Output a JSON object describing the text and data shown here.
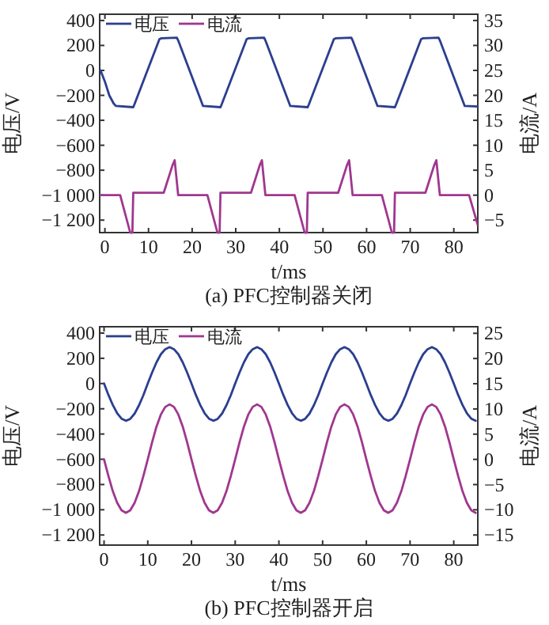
{
  "chart_data": [
    {
      "type": "line",
      "title": "(a) PFC控制器关闭",
      "xlabel": "t/ms",
      "ylabel": "电压/V",
      "y2label": "电流/A",
      "legend": "top left",
      "xlim": [
        -1.2,
        85.5
      ],
      "xticks": [
        0,
        10,
        20,
        30,
        40,
        50,
        60,
        70,
        80
      ],
      "ylim": [
        -1300,
        450
      ],
      "yticks": [
        400,
        200,
        0,
        {
          "value": -200,
          "label": "−200"
        },
        {
          "value": -400,
          "label": "−400"
        },
        {
          "value": -600,
          "label": "−600"
        },
        {
          "value": -800,
          "label": "−800"
        },
        {
          "value": -1000,
          "label": "−1 000"
        },
        {
          "value": -1200,
          "label": "−1 200"
        }
      ],
      "y2lim": [
        -7.5,
        36.25
      ],
      "y2ticks": [
        {
          "value": -5,
          "label": "−5"
        },
        0,
        5,
        10,
        15,
        20,
        25,
        30,
        35
      ],
      "series": [
        {
          "name": "电压",
          "color": "#2b3f8f",
          "x": [
            -1,
            0,
            1,
            2,
            2.5,
            6.5,
            6.8,
            12.5,
            13,
            16.5,
            16.8,
            22.5,
            26.5,
            26.8,
            32.5,
            33,
            36.5,
            36.8,
            42.5,
            46.5,
            46.8,
            52.5,
            53,
            56.5,
            56.8,
            62.5,
            66.5,
            66.8,
            72.5,
            73,
            76.5,
            76.8,
            82.5,
            85.5
          ],
          "values": [
            0,
            -90,
            -200,
            -265,
            -285,
            -295,
            -270,
            250,
            258,
            262,
            240,
            -285,
            -295,
            -270,
            250,
            258,
            262,
            240,
            -285,
            -295,
            -270,
            250,
            258,
            262,
            240,
            -285,
            -295,
            -270,
            250,
            258,
            262,
            240,
            -285,
            -290
          ]
        },
        {
          "name": "电流",
          "color": "#a0378f",
          "axis": "y2",
          "x": [
            -1,
            3.5,
            5.8,
            6.3,
            6.5,
            13.5,
            15.5,
            16,
            16.8,
            23.5,
            25.8,
            26.3,
            26.5,
            33.5,
            35.5,
            36,
            36.8,
            43.5,
            45.8,
            46.3,
            46.5,
            53.5,
            55.5,
            56,
            56.8,
            63.5,
            65.8,
            66.3,
            66.5,
            73.5,
            75.5,
            76,
            76.8,
            83.5,
            85.5
          ],
          "values": [
            0,
            0,
            -7.5,
            -7.5,
            0.5,
            0.5,
            6,
            7,
            0,
            0,
            -7.5,
            -7.5,
            0.5,
            0.5,
            6,
            7,
            0,
            0,
            -7.5,
            -7.5,
            0.5,
            0.5,
            6,
            7,
            0,
            0,
            -7.5,
            -7.5,
            0.5,
            0.5,
            6,
            7,
            0,
            0,
            -6
          ]
        }
      ]
    },
    {
      "type": "line",
      "title": "(b) PFC控制器开启",
      "xlabel": "t/ms",
      "ylabel": "电压/V",
      "y2label": "电流/A",
      "legend": "top left",
      "xlim": [
        -1,
        85.5
      ],
      "xticks": [
        0,
        10,
        20,
        30,
        40,
        50,
        60,
        70,
        80
      ],
      "ylim": [
        -1280,
        450
      ],
      "yticks": [
        400,
        200,
        0,
        {
          "value": -200,
          "label": "−200"
        },
        {
          "value": -400,
          "label": "−400"
        },
        {
          "value": -600,
          "label": "−600"
        },
        {
          "value": -800,
          "label": "−800"
        },
        {
          "value": -1000,
          "label": "−1 000"
        },
        {
          "value": -1200,
          "label": "−1 200"
        }
      ],
      "y2lim": [
        -17,
        26.3
      ],
      "y2ticks": [
        {
          "value": -15,
          "label": "−15"
        },
        {
          "value": -10,
          "label": "−10"
        },
        {
          "value": -5,
          "label": "−5"
        },
        0,
        5,
        10,
        15,
        20,
        25
      ],
      "x": [
        0,
        1,
        2,
        3,
        4,
        5,
        6,
        7,
        8,
        9,
        10,
        11,
        12,
        13,
        14,
        15,
        16,
        17,
        18,
        19,
        20,
        21,
        22,
        23,
        24,
        25,
        26,
        27,
        28,
        29,
        30,
        31,
        32,
        33,
        34,
        35,
        36,
        37,
        38,
        39,
        40,
        41,
        42,
        43,
        44,
        45,
        46,
        47,
        48,
        49,
        50,
        51,
        52,
        53,
        54,
        55,
        56,
        57,
        58,
        59,
        60,
        61,
        62,
        63,
        64,
        65,
        66,
        67,
        68,
        69,
        70,
        71,
        72,
        73,
        74,
        75,
        76,
        77,
        78,
        79,
        80,
        81,
        82,
        83,
        84,
        85
      ],
      "series": [
        {
          "name": "电压",
          "color": "#2b3f8f",
          "values": [
            0,
            -90,
            -170,
            -235,
            -278,
            -295,
            -280,
            -238,
            -172,
            -92,
            0,
            88,
            168,
            232,
            272,
            288,
            272,
            232,
            168,
            88,
            0,
            -90,
            -170,
            -235,
            -278,
            -295,
            -280,
            -238,
            -172,
            -92,
            0,
            88,
            168,
            232,
            272,
            288,
            272,
            232,
            168,
            88,
            0,
            -90,
            -170,
            -235,
            -278,
            -295,
            -280,
            -238,
            -172,
            -92,
            0,
            88,
            168,
            232,
            272,
            288,
            272,
            232,
            168,
            88,
            0,
            -90,
            -170,
            -235,
            -278,
            -295,
            -280,
            -238,
            -172,
            -92,
            0,
            88,
            168,
            232,
            272,
            288,
            272,
            232,
            168,
            88,
            0,
            -90,
            -170,
            -235,
            -278,
            -295
          ]
        },
        {
          "name": "电流",
          "color": "#a0378f",
          "axis": "y2",
          "values": [
            0,
            -3.3,
            -6.3,
            -8.6,
            -10.1,
            -10.6,
            -10.1,
            -8.6,
            -6.3,
            -3.3,
            0,
            3.4,
            6.5,
            8.9,
            10.4,
            10.9,
            10.4,
            8.9,
            6.5,
            3.4,
            0,
            -3.3,
            -6.3,
            -8.6,
            -10.1,
            -10.6,
            -10.1,
            -8.6,
            -6.3,
            -3.3,
            0,
            3.4,
            6.5,
            8.9,
            10.4,
            10.9,
            10.4,
            8.9,
            6.5,
            3.4,
            0,
            -3.3,
            -6.3,
            -8.6,
            -10.1,
            -10.6,
            -10.1,
            -8.6,
            -6.3,
            -3.3,
            0,
            3.4,
            6.5,
            8.9,
            10.4,
            10.9,
            10.4,
            8.9,
            6.5,
            3.4,
            0,
            -3.3,
            -6.3,
            -8.6,
            -10.1,
            -10.6,
            -10.1,
            -8.6,
            -6.3,
            -3.3,
            0,
            3.4,
            6.5,
            8.9,
            10.4,
            10.9,
            10.4,
            8.9,
            6.5,
            3.4,
            0,
            -3.3,
            -6.3,
            -8.6,
            -10.1,
            -10.6
          ]
        }
      ]
    }
  ]
}
